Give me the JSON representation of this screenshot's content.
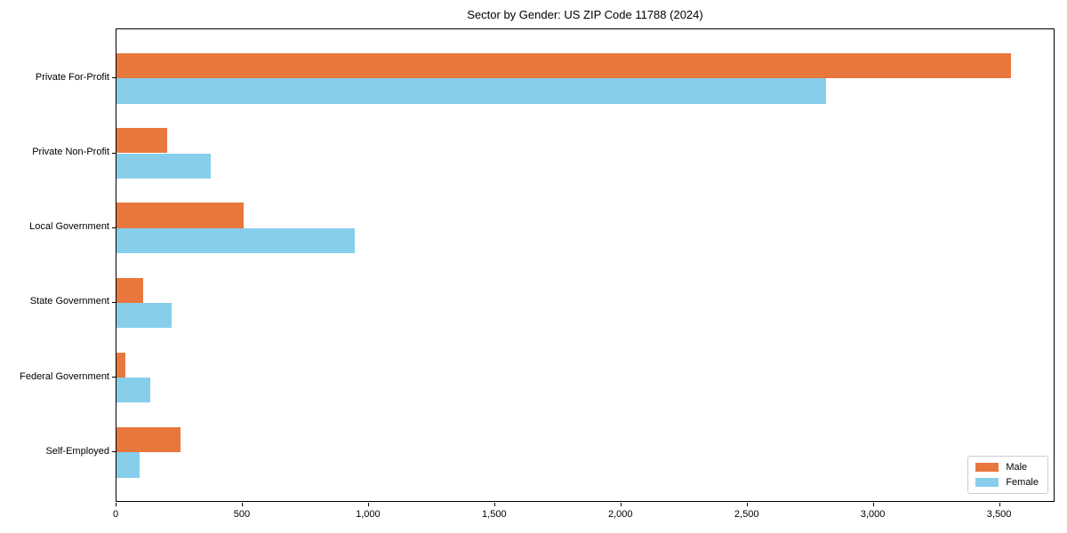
{
  "chart_data": {
    "type": "bar",
    "orientation": "horizontal",
    "title": "Sector by Gender: US ZIP Code 11788 (2024)",
    "categories": [
      "Private For-Profit",
      "Private Non-Profit",
      "Local Government",
      "State Government",
      "Federal Government",
      "Self-Employed"
    ],
    "series": [
      {
        "name": "Male",
        "color": "#e8773d",
        "values": [
          3545,
          200,
          505,
          105,
          35,
          255
        ]
      },
      {
        "name": "Female",
        "color": "#87ceeb",
        "values": [
          2810,
          375,
          945,
          220,
          135,
          90
        ]
      }
    ],
    "xlabel": "",
    "ylabel": "",
    "xlim": [
      0,
      3720
    ],
    "xticks": [
      0,
      500,
      1000,
      1500,
      2000,
      2500,
      3000,
      3500
    ],
    "xtick_labels": [
      "0",
      "500",
      "1,000",
      "1,500",
      "2,000",
      "2,500",
      "3,000",
      "3,500"
    ],
    "legend_position": "lower right",
    "grid": false,
    "background_color": "#ffffff",
    "spine_color": "#000000"
  }
}
